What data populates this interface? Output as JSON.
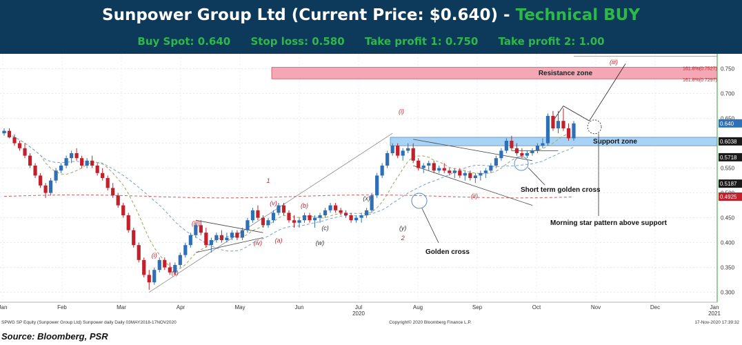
{
  "header": {
    "title": "Sunpower Group Ltd (Current Price: $0.640) -",
    "verdict": "Technical BUY",
    "buy_spot": "Buy Spot: 0.640",
    "stop_loss": "Stop loss: 0.580",
    "take_profit_1": "Take profit 1: 0.750",
    "take_profit_2": "Take profit 2: 1.00"
  },
  "colors": {
    "header_bg": "#0d3a5a",
    "verdict": "#2db84a",
    "candle_up": "#2f6fb5",
    "candle_down": "#c2212b",
    "resistance": "#f4a7b4",
    "support": "#a9d3f5"
  },
  "footer": {
    "left": "SPWG SP Equity (Sunpower Group Ltd) Sunpower daily  Daily 03MAY2018-17NOV2020",
    "center": "Copyright© 2020 Bloomberg Finance L.P.",
    "right": "17-Nov-2020 17:39:32",
    "source": "Source: Bloomberg, PSR"
  },
  "chart_data": {
    "type": "candlestick",
    "ylim": [
      0.28,
      0.78
    ],
    "y_ticks": [
      "0.300",
      "0.350",
      "0.400",
      "0.450",
      "0.500",
      "0.550",
      "0.600",
      "0.650",
      "0.700",
      "0.750"
    ],
    "x_labels": [
      "Jan",
      "Feb",
      "Mar",
      "Apr",
      "May",
      "Jun",
      "Jul",
      "Aug",
      "Sep",
      "Oct",
      "Nov",
      "Dec",
      "Jan"
    ],
    "x_sublabels": [
      {
        "under": "Jul",
        "text": "2020"
      },
      {
        "under": "Jan",
        "text": "2021"
      }
    ],
    "price_tags": [
      {
        "value": 0.64,
        "label": "0.640",
        "color": "#2f6fb5"
      },
      {
        "value": 0.6038,
        "label": "0.6038",
        "color": "#1a1a1a"
      },
      {
        "value": 0.5718,
        "label": "0.5718",
        "color": "#1a1a1a"
      },
      {
        "value": 0.5187,
        "label": "0.5187",
        "color": "#1a1a1a"
      },
      {
        "value": 0.4925,
        "label": "0.4925",
        "color": "#c2212b"
      }
    ],
    "zones": [
      {
        "name": "Resistance zone",
        "from": 0.7297,
        "to": 0.7527
      },
      {
        "name": "Support zone",
        "from": 0.595,
        "to": 0.612
      }
    ],
    "fib_labels": [
      "161.8%(0.7527)",
      "161.8%(0.7297)"
    ],
    "wave_labels": [
      "(i)",
      "(ii)",
      "(iii)",
      "(iv)",
      "(v)",
      "(a)",
      "(b)",
      "(c)",
      "(w)",
      "(x)",
      "(y)",
      "1",
      "2"
    ],
    "annotations": [
      "Short term golden cross",
      "Morning star pattern above support",
      "Golden cross"
    ],
    "candles": [
      [
        0.62,
        0.63,
        0.615,
        0.625
      ],
      [
        0.625,
        0.63,
        0.61,
        0.612
      ],
      [
        0.612,
        0.618,
        0.595,
        0.6
      ],
      [
        0.6,
        0.605,
        0.585,
        0.59
      ],
      [
        0.59,
        0.6,
        0.57,
        0.575
      ],
      [
        0.575,
        0.58,
        0.55,
        0.555
      ],
      [
        0.555,
        0.56,
        0.53,
        0.535
      ],
      [
        0.535,
        0.54,
        0.51,
        0.515
      ],
      [
        0.515,
        0.52,
        0.49,
        0.5
      ],
      [
        0.5,
        0.53,
        0.495,
        0.525
      ],
      [
        0.525,
        0.55,
        0.52,
        0.545
      ],
      [
        0.545,
        0.56,
        0.54,
        0.555
      ],
      [
        0.555,
        0.575,
        0.55,
        0.57
      ],
      [
        0.57,
        0.585,
        0.56,
        0.58
      ],
      [
        0.58,
        0.59,
        0.565,
        0.57
      ],
      [
        0.57,
        0.575,
        0.55,
        0.555
      ],
      [
        0.555,
        0.57,
        0.55,
        0.565
      ],
      [
        0.565,
        0.575,
        0.55,
        0.555
      ],
      [
        0.555,
        0.56,
        0.535,
        0.54
      ],
      [
        0.54,
        0.55,
        0.525,
        0.53
      ],
      [
        0.53,
        0.535,
        0.505,
        0.51
      ],
      [
        0.51,
        0.52,
        0.49,
        0.495
      ],
      [
        0.495,
        0.5,
        0.47,
        0.475
      ],
      [
        0.475,
        0.48,
        0.45,
        0.455
      ],
      [
        0.455,
        0.46,
        0.42,
        0.425
      ],
      [
        0.425,
        0.43,
        0.39,
        0.395
      ],
      [
        0.395,
        0.4,
        0.36,
        0.365
      ],
      [
        0.365,
        0.37,
        0.33,
        0.335
      ],
      [
        0.335,
        0.345,
        0.305,
        0.32
      ],
      [
        0.32,
        0.35,
        0.315,
        0.345
      ],
      [
        0.345,
        0.37,
        0.34,
        0.365
      ],
      [
        0.365,
        0.37,
        0.345,
        0.35
      ],
      [
        0.35,
        0.36,
        0.335,
        0.34
      ],
      [
        0.34,
        0.36,
        0.335,
        0.355
      ],
      [
        0.355,
        0.38,
        0.35,
        0.375
      ],
      [
        0.375,
        0.4,
        0.37,
        0.395
      ],
      [
        0.395,
        0.42,
        0.39,
        0.415
      ],
      [
        0.415,
        0.44,
        0.41,
        0.435
      ],
      [
        0.435,
        0.445,
        0.415,
        0.42
      ],
      [
        0.42,
        0.43,
        0.39,
        0.395
      ],
      [
        0.395,
        0.41,
        0.38,
        0.405
      ],
      [
        0.405,
        0.42,
        0.4,
        0.415
      ],
      [
        0.415,
        0.425,
        0.4,
        0.405
      ],
      [
        0.405,
        0.42,
        0.4,
        0.41
      ],
      [
        0.41,
        0.425,
        0.405,
        0.42
      ],
      [
        0.42,
        0.425,
        0.405,
        0.41
      ],
      [
        0.41,
        0.43,
        0.405,
        0.425
      ],
      [
        0.425,
        0.45,
        0.42,
        0.445
      ],
      [
        0.445,
        0.47,
        0.44,
        0.465
      ],
      [
        0.465,
        0.475,
        0.445,
        0.45
      ],
      [
        0.45,
        0.455,
        0.43,
        0.435
      ],
      [
        0.435,
        0.45,
        0.43,
        0.445
      ],
      [
        0.445,
        0.465,
        0.44,
        0.46
      ],
      [
        0.46,
        0.48,
        0.455,
        0.475
      ],
      [
        0.475,
        0.48,
        0.455,
        0.46
      ],
      [
        0.46,
        0.465,
        0.44,
        0.445
      ],
      [
        0.445,
        0.455,
        0.43,
        0.44
      ],
      [
        0.44,
        0.45,
        0.43,
        0.445
      ],
      [
        0.445,
        0.46,
        0.44,
        0.455
      ],
      [
        0.455,
        0.46,
        0.44,
        0.445
      ],
      [
        0.445,
        0.455,
        0.43,
        0.45
      ],
      [
        0.45,
        0.46,
        0.44,
        0.455
      ],
      [
        0.455,
        0.47,
        0.45,
        0.465
      ],
      [
        0.465,
        0.48,
        0.46,
        0.475
      ],
      [
        0.475,
        0.48,
        0.46,
        0.465
      ],
      [
        0.465,
        0.47,
        0.455,
        0.46
      ],
      [
        0.46,
        0.465,
        0.45,
        0.455
      ],
      [
        0.455,
        0.46,
        0.44,
        0.445
      ],
      [
        0.445,
        0.455,
        0.44,
        0.45
      ],
      [
        0.45,
        0.46,
        0.44,
        0.455
      ],
      [
        0.455,
        0.47,
        0.45,
        0.465
      ],
      [
        0.465,
        0.5,
        0.46,
        0.495
      ],
      [
        0.495,
        0.54,
        0.49,
        0.535
      ],
      [
        0.535,
        0.56,
        0.53,
        0.555
      ],
      [
        0.555,
        0.585,
        0.55,
        0.58
      ],
      [
        0.58,
        0.6,
        0.575,
        0.595
      ],
      [
        0.595,
        0.6,
        0.57,
        0.575
      ],
      [
        0.575,
        0.59,
        0.565,
        0.585
      ],
      [
        0.585,
        0.6,
        0.58,
        0.59
      ],
      [
        0.59,
        0.6,
        0.56,
        0.565
      ],
      [
        0.565,
        0.57,
        0.545,
        0.55
      ],
      [
        0.55,
        0.56,
        0.54,
        0.555
      ],
      [
        0.555,
        0.565,
        0.545,
        0.56
      ],
      [
        0.56,
        0.565,
        0.54,
        0.545
      ],
      [
        0.545,
        0.555,
        0.54,
        0.55
      ],
      [
        0.55,
        0.56,
        0.54,
        0.545
      ],
      [
        0.545,
        0.55,
        0.535,
        0.54
      ],
      [
        0.54,
        0.55,
        0.53,
        0.545
      ],
      [
        0.545,
        0.55,
        0.53,
        0.535
      ],
      [
        0.535,
        0.545,
        0.525,
        0.54
      ],
      [
        0.54,
        0.545,
        0.525,
        0.53
      ],
      [
        0.53,
        0.54,
        0.52,
        0.535
      ],
      [
        0.535,
        0.545,
        0.525,
        0.54
      ],
      [
        0.54,
        0.55,
        0.53,
        0.545
      ],
      [
        0.545,
        0.56,
        0.54,
        0.555
      ],
      [
        0.555,
        0.575,
        0.55,
        0.57
      ],
      [
        0.57,
        0.59,
        0.565,
        0.585
      ],
      [
        0.585,
        0.61,
        0.58,
        0.605
      ],
      [
        0.605,
        0.615,
        0.585,
        0.59
      ],
      [
        0.59,
        0.6,
        0.575,
        0.58
      ],
      [
        0.58,
        0.59,
        0.57,
        0.575
      ],
      [
        0.575,
        0.585,
        0.57,
        0.58
      ],
      [
        0.58,
        0.59,
        0.575,
        0.585
      ],
      [
        0.585,
        0.6,
        0.58,
        0.595
      ],
      [
        0.595,
        0.61,
        0.59,
        0.6
      ],
      [
        0.6,
        0.66,
        0.595,
        0.655
      ],
      [
        0.655,
        0.665,
        0.625,
        0.63
      ],
      [
        0.63,
        0.665,
        0.62,
        0.645
      ],
      [
        0.645,
        0.67,
        0.625,
        0.63
      ],
      [
        0.63,
        0.64,
        0.605,
        0.61
      ],
      [
        0.61,
        0.645,
        0.605,
        0.64
      ]
    ]
  }
}
